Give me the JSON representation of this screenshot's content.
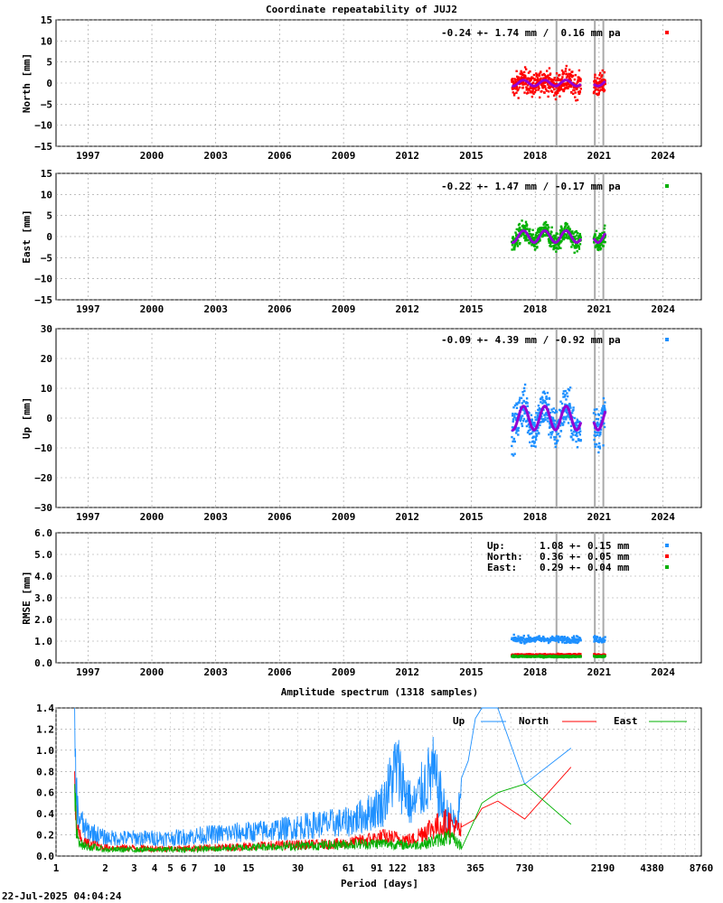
{
  "figure": {
    "footer": "22-Jul-2025 04:04:24"
  },
  "chart_data": [
    {
      "type": "scatter",
      "title": "Coordinate repeatability of JUJ2",
      "ylabel": "North [mm]",
      "xlabel": "",
      "xlim": [
        1995.5,
        2025.8
      ],
      "ylim": [
        -15,
        15
      ],
      "xticks": [
        "1997",
        "2000",
        "2003",
        "2006",
        "2009",
        "2012",
        "2015",
        "2018",
        "2021",
        "2024"
      ],
      "yticks": [
        "15",
        "10",
        "5",
        "0",
        "−5",
        "−10",
        "−15"
      ],
      "grid": true,
      "annotation": "-0.24 +- 1.74 mm /  0.16 mm pa",
      "series": [
        {
          "color": "#ff0000",
          "x_range": [
            2016.9,
            2021.3
          ],
          "center": 0.0,
          "spread": 1.74
        },
        {
          "color": "#9400d3",
          "model": {
            "offset": 0.0,
            "amplitude": 0.7
          }
        }
      ],
      "vlines": [
        2019.0,
        2020.8,
        2021.2
      ],
      "gap": [
        2020.15,
        2020.75
      ]
    },
    {
      "type": "scatter",
      "title": "",
      "ylabel": "East [mm]",
      "xlabel": "",
      "xlim": [
        1995.5,
        2025.8
      ],
      "ylim": [
        -15,
        15
      ],
      "xticks": [
        "1997",
        "2000",
        "2003",
        "2006",
        "2009",
        "2012",
        "2015",
        "2018",
        "2021",
        "2024"
      ],
      "yticks": [
        "15",
        "10",
        "5",
        "0",
        "−5",
        "−10",
        "−15"
      ],
      "grid": true,
      "annotation": "-0.22 +- 1.47 mm / -0.17 mm pa",
      "series": [
        {
          "color": "#00b000",
          "x_range": [
            2016.9,
            2021.3
          ],
          "center": 0.0,
          "spread": 1.47
        },
        {
          "color": "#9400d3",
          "model": {
            "offset": 0.0,
            "amplitude": 1.4
          }
        }
      ],
      "vlines": [
        2019.0,
        2020.8,
        2021.2
      ],
      "gap": [
        2020.15,
        2020.75
      ]
    },
    {
      "type": "scatter",
      "title": "",
      "ylabel": "Up [mm]",
      "xlabel": "",
      "xlim": [
        1995.5,
        2025.8
      ],
      "ylim": [
        -30,
        30
      ],
      "xticks": [
        "1997",
        "2000",
        "2003",
        "2006",
        "2009",
        "2012",
        "2015",
        "2018",
        "2021",
        "2024"
      ],
      "yticks": [
        "30",
        "20",
        "10",
        "0",
        "−10",
        "−20",
        "−30"
      ],
      "grid": true,
      "annotation": "-0.09 +- 4.39 mm / -0.92 mm pa",
      "series": [
        {
          "color": "#1e90ff",
          "x_range": [
            2016.9,
            2021.3
          ],
          "center": 0.0,
          "spread": 4.39
        },
        {
          "color": "#9400d3",
          "model": {
            "offset": 0.0,
            "amplitude": 4.0
          }
        }
      ],
      "vlines": [
        2019.0,
        2020.8,
        2021.2
      ],
      "gap": [
        2020.15,
        2020.75
      ]
    },
    {
      "type": "scatter",
      "title": "",
      "ylabel": "RMSE [mm]",
      "xlabel": "",
      "xlim": [
        1995.5,
        2025.8
      ],
      "ylim": [
        0,
        6
      ],
      "xticks": [
        "1997",
        "2000",
        "2003",
        "2006",
        "2009",
        "2012",
        "2015",
        "2018",
        "2021",
        "2024"
      ],
      "yticks": [
        "6.0",
        "5.0",
        "4.0",
        "3.0",
        "2.0",
        "1.0",
        "0.0"
      ],
      "grid": true,
      "legend": [
        {
          "label": "Up:",
          "value": "1.08 +- 0.15 mm",
          "color": "#1e90ff"
        },
        {
          "label": "North:",
          "value": "0.36 +- 0.05 mm",
          "color": "#ff0000"
        },
        {
          "label": "East:",
          "value": "0.29 +- 0.04 mm",
          "color": "#00b000"
        }
      ],
      "series": [
        {
          "name": "Up",
          "color": "#1e90ff",
          "level": 1.08,
          "spread": 0.15
        },
        {
          "name": "North",
          "color": "#ff0000",
          "level": 0.36,
          "spread": 0.05
        },
        {
          "name": "East",
          "color": "#00b000",
          "level": 0.29,
          "spread": 0.04
        }
      ],
      "vlines": [
        2019.0,
        2020.8,
        2021.2
      ],
      "gap": [
        2020.15,
        2020.75
      ]
    },
    {
      "type": "line",
      "title": "Amplitude spectrum (1318 samples)",
      "xlabel": "Period [days]",
      "ylabel": "",
      "xscale": "log",
      "xlim": [
        1,
        8760
      ],
      "ylim": [
        0,
        1.4
      ],
      "xticks": [
        "1",
        "2",
        "3",
        "4",
        "5",
        "6",
        "7",
        "10",
        "15",
        "30",
        "61",
        "91",
        "122",
        "183",
        "365",
        "730",
        "2190",
        "4380",
        "8760"
      ],
      "yticks": [
        "1.4",
        "1.2",
        "1.0",
        "0.8",
        "0.6",
        "0.4",
        "0.2",
        "0.0"
      ],
      "grid": true,
      "legend_position": "top-right",
      "series": [
        {
          "name": "Up",
          "color": "#1e90ff",
          "x": [
            1.3,
            1.32,
            1.36,
            1.5,
            2,
            5,
            10,
            20,
            40,
            60,
            80,
            100,
            120,
            150,
            183,
            200,
            240,
            280,
            330,
            365,
            400,
            500,
            730,
            1400
          ],
          "y": [
            1.4,
            0.68,
            0.4,
            0.25,
            0.17,
            0.17,
            0.21,
            0.24,
            0.3,
            0.32,
            0.4,
            0.5,
            0.85,
            0.45,
            0.7,
            0.8,
            0.4,
            0.3,
            0.9,
            1.3,
            1.4,
            1.4,
            0.68,
            1.02
          ]
        },
        {
          "name": "North",
          "color": "#ff0000",
          "x": [
            1.3,
            1.33,
            1.45,
            2,
            5,
            10,
            20,
            40,
            60,
            100,
            150,
            183,
            250,
            300,
            365,
            400,
            500,
            730,
            1400
          ],
          "y": [
            0.8,
            0.25,
            0.13,
            0.08,
            0.07,
            0.08,
            0.1,
            0.11,
            0.12,
            0.18,
            0.15,
            0.25,
            0.32,
            0.22,
            0.35,
            0.45,
            0.52,
            0.35,
            0.84
          ]
        },
        {
          "name": "East",
          "color": "#00b000",
          "x": [
            1.3,
            1.33,
            1.45,
            2,
            5,
            10,
            20,
            40,
            60,
            100,
            150,
            183,
            250,
            300,
            365,
            400,
            500,
            730,
            1400
          ],
          "y": [
            0.68,
            0.2,
            0.1,
            0.06,
            0.06,
            0.07,
            0.09,
            0.1,
            0.11,
            0.12,
            0.1,
            0.12,
            0.18,
            0.1,
            0.36,
            0.5,
            0.6,
            0.68,
            0.3
          ]
        }
      ]
    }
  ]
}
